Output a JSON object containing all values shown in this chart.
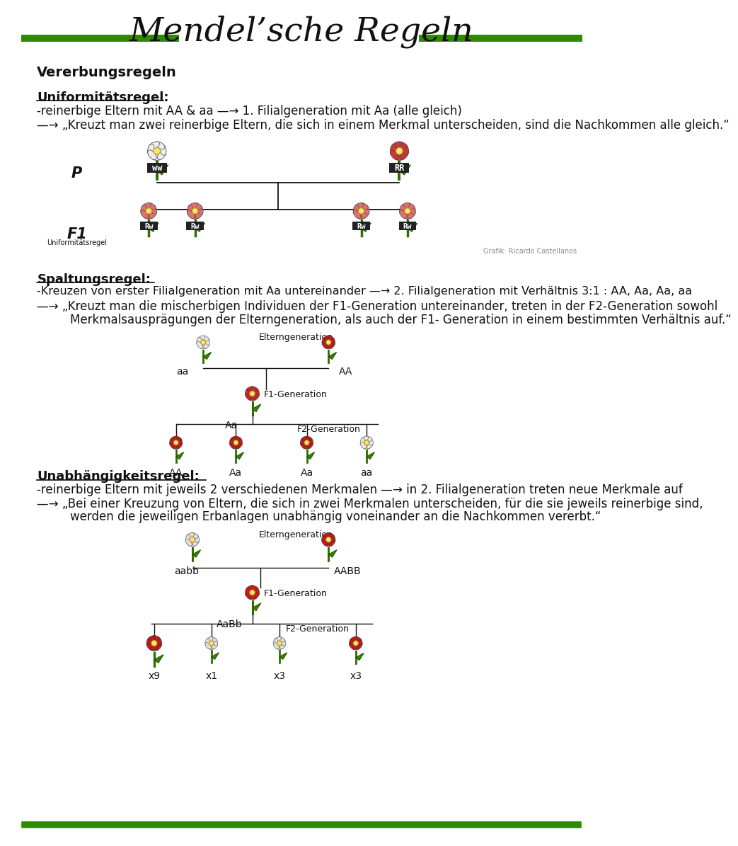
{
  "title": "Mendel’sche Regeln",
  "bg_color": "#ffffff",
  "green_color": "#2e8b00",
  "dark_color": "#111111",
  "red_color": "#cc2222",
  "heading": "Vererbungsregeln",
  "section1_title": "Uniformitätsregel:",
  "section1_line1": "-reinerbige Eltern mit AA & aa —→ 1. Filialgeneration mit Aa (alle gleich)",
  "section1_line2": "—→ „Kreuzt man zwei reinerbige Eltern, die sich in einem Merkmal unterscheiden, sind die Nachkommen alle gleich.“",
  "section2_title": "Spaltungsregel:",
  "section2_line1": "-Kreuzen von erster Filialgeneration mit Aa untereinander —→ 2. Filialgeneration mit Verhältnis 3:1 : AA, Aa, Aa, aa",
  "section2_line2": "—→ „Kreuzt man die mischerbigen Individuen der F1-Generation untereinander, treten in der F2-Generation sowohl",
  "section2_line3": "Merkmalsausprägungen der Elterngeneration, als auch der F1- Generation in einem bestimmten Verhältnis auf.“",
  "section3_title": "Unabhängigkeitsregel:",
  "section3_line1": "-reinerbige Eltern mit jeweils 2 verschiedenen Merkmalen —→ in 2. Filialgeneration treten neue Merkmale auf",
  "section3_line2": "—→ „Bei einer Kreuzung von Eltern, die sich in zwei Merkmalen unterscheiden, für die sie jeweils reinerbige sind,",
  "section3_line3": "werden die jeweiligen Erbanlagen unabhängig voneinander an die Nachkommen vererbt.“",
  "credit": "Grafik: Ricardo Castellanos",
  "uniformitaetsregel_label": "Uniformitätsregel"
}
